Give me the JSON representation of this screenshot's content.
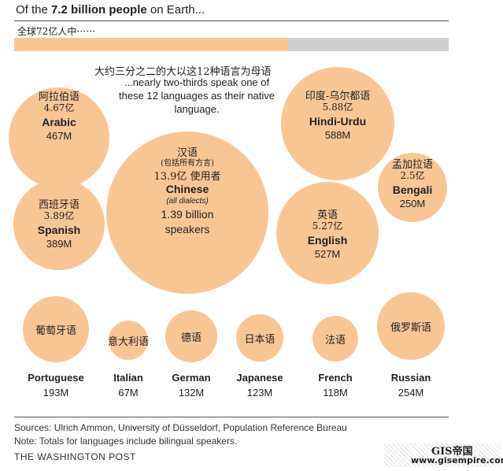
{
  "header": {
    "prefix": "Of the ",
    "bold": "7.2 billion people",
    "suffix": " on Earth...",
    "subtitle_cn": "全球72亿人中⋯⋯"
  },
  "intro": {
    "cn": "大约三分之二的大以这12种语言为母语",
    "en": "...nearly two-thirds speak one of these 12 languages as their native language."
  },
  "chart_data": {
    "type": "bubble",
    "title": "Of the 7.2 billion people on Earth...",
    "total_population_billion": 7.2,
    "share_bar_fraction": 0.63,
    "unit": "millions of speakers",
    "languages": [
      {
        "key": "arabic",
        "name": "Arabic",
        "cn_name": "阿拉伯语",
        "cn_value": "4.67亿",
        "value_label": "467M",
        "value": 467
      },
      {
        "key": "chinese",
        "name": "Chinese",
        "cn_name": "汉语",
        "cn_note": "(包括所有方言)",
        "cn_value": "13.9亿 使用者",
        "note": "(all dialects)",
        "value_label": "1.39 billion",
        "value_label2": "speakers",
        "value": 1390
      },
      {
        "key": "hindi",
        "name": "Hindi-Urdu",
        "cn_name": "印度-乌尔都语",
        "cn_value": "5.88亿",
        "value_label": "588M",
        "value": 588
      },
      {
        "key": "bengali",
        "name": "Bengali",
        "cn_name": "孟加拉语",
        "cn_value": "2.5亿",
        "value_label": "250M",
        "value": 250
      },
      {
        "key": "spanish",
        "name": "Spanish",
        "cn_name": "西班牙语",
        "cn_value": "3.89亿",
        "value_label": "389M",
        "value": 389
      },
      {
        "key": "english",
        "name": "English",
        "cn_name": "英语",
        "cn_value": "5.27亿",
        "value_label": "527M",
        "value": 527
      },
      {
        "key": "portuguese",
        "name": "Portuguese",
        "cn_name": "葡萄牙语",
        "value_label": "193M",
        "value": 193
      },
      {
        "key": "italian",
        "name": "Italian",
        "cn_name": "意大利语",
        "value_label": "67M",
        "value": 67
      },
      {
        "key": "german",
        "name": "German",
        "cn_name": "德语",
        "value_label": "132M",
        "value": 132
      },
      {
        "key": "japanese",
        "name": "Japanese",
        "cn_name": "日本语",
        "value_label": "123M",
        "value": 123
      },
      {
        "key": "french",
        "name": "French",
        "cn_name": "法语",
        "value_label": "118M",
        "value": 118
      },
      {
        "key": "russian",
        "name": "Russian",
        "cn_name": "俄罗斯语",
        "value_label": "254M",
        "value": 254
      }
    ]
  },
  "colors": {
    "bubble": "#f8c695",
    "bar_bg": "#cfcfcf"
  },
  "footer": {
    "sources": "Sources: Ulrich Ammon, University of Düsseldorf, Population Reference Bureau",
    "note": "Note: Totals for languages include bilingual speakers.",
    "publisher": "THE WASHINGTON POST"
  },
  "watermark": {
    "line1": "GIS帝国",
    "line2": "www.gisempire.com"
  }
}
